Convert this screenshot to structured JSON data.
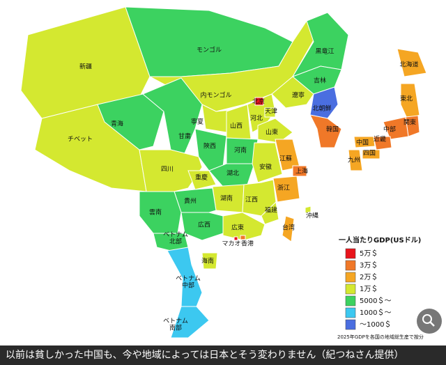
{
  "map": {
    "regions": [
      {
        "label": "新疆",
        "color": "#d4e830"
      },
      {
        "label": "チベット",
        "color": "#d4e830"
      },
      {
        "label": "モンゴル",
        "color": "#3cd260"
      },
      {
        "label": "内モンゴル",
        "color": "#d4e830"
      },
      {
        "label": "黒竜江",
        "color": "#3cd260"
      },
      {
        "label": "青海",
        "color": "#3cd260"
      },
      {
        "label": "甘粛",
        "color": "#3cd260"
      },
      {
        "label": "吉林",
        "color": "#3cd260"
      },
      {
        "label": "遼寧",
        "color": "#d4e830"
      },
      {
        "label": "北朝鮮",
        "color": "#4a6ee0"
      },
      {
        "label": "韓国",
        "color": "#f07828"
      },
      {
        "label": "寧夏",
        "color": "#d4e830"
      },
      {
        "label": "山西",
        "color": "#d4e830"
      },
      {
        "label": "河北",
        "color": "#d4e830"
      },
      {
        "label": "天津",
        "color": "#d4e830"
      },
      {
        "label": "山東",
        "color": "#d4e830"
      },
      {
        "label": "北京",
        "color": "#e8141b"
      },
      {
        "label": "陝西",
        "color": "#3cd260"
      },
      {
        "label": "河南",
        "color": "#3cd260"
      },
      {
        "label": "湖北",
        "color": "#3cd260"
      },
      {
        "label": "安徽",
        "color": "#d4e830"
      },
      {
        "label": "江蘇",
        "color": "#f5a623"
      },
      {
        "label": "上海",
        "color": "#f07828"
      },
      {
        "label": "浙江",
        "color": "#f5a623"
      },
      {
        "label": "四川",
        "color": "#d4e830"
      },
      {
        "label": "重慶",
        "color": "#d4e830"
      },
      {
        "label": "湖南",
        "color": "#d4e830"
      },
      {
        "label": "江西",
        "color": "#d4e830"
      },
      {
        "label": "福建",
        "color": "#d4e830"
      },
      {
        "label": "貴州",
        "color": "#3cd260"
      },
      {
        "label": "雲南",
        "color": "#3cd260"
      },
      {
        "label": "広西",
        "color": "#3cd260"
      },
      {
        "label": "広東",
        "color": "#d4e830"
      },
      {
        "label": "香港",
        "color": "#f07828"
      },
      {
        "label": "マカオ",
        "color": "#e8141b"
      },
      {
        "label": "台湾",
        "color": "#f5a623"
      },
      {
        "label": "海南",
        "color": "#d4e830"
      },
      {
        "label": [
          "ベトナム",
          "北部"
        ],
        "color": "#3cd260"
      },
      {
        "label": [
          "ベトナム",
          "中部"
        ],
        "color": "#3cc8f0"
      },
      {
        "label": [
          "ベトナム",
          "南部"
        ],
        "color": "#3cc8f0"
      },
      {
        "label": "沖縄",
        "color": "#d4e830"
      },
      {
        "label": "北海道",
        "color": "#f5a623"
      },
      {
        "label": "東北",
        "color": "#f5a623"
      },
      {
        "label": "関東",
        "color": "#f07828"
      },
      {
        "label": "中部",
        "color": "#f07828"
      },
      {
        "label": "近畿",
        "color": "#f07828"
      },
      {
        "label": "中国",
        "color": "#f5a623"
      },
      {
        "label": "四国",
        "color": "#f5a623"
      },
      {
        "label": "九州",
        "color": "#f5a623"
      }
    ],
    "legend": {
      "title": "一人当たりGDP(USドル)",
      "items": [
        {
          "label": "5万＄",
          "color": "#e8141b"
        },
        {
          "label": "3万＄",
          "color": "#f07828"
        },
        {
          "label": "2万＄",
          "color": "#f5a623"
        },
        {
          "label": "1万＄",
          "color": "#d4e830"
        },
        {
          "label": "5000＄～",
          "color": "#3cd260"
        },
        {
          "label": "1000＄～",
          "color": "#3cc8f0"
        },
        {
          "label": "～1000＄",
          "color": "#4a6ee0"
        }
      ],
      "note": "2025年GDPを各国の地域総生産で按分"
    }
  },
  "caption": "以前は貧しかった中国も、今や地域によっては日本とそう変わりません（紀つねさん提供）"
}
